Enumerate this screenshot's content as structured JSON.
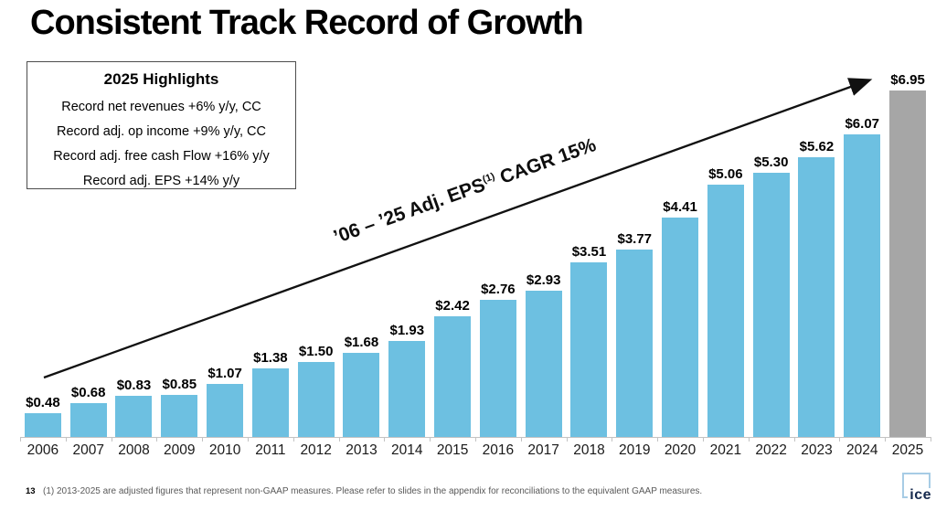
{
  "title": "Consistent Track Record of Growth",
  "highlights": {
    "title": "2025 Highlights",
    "lines": [
      "Record net revenues +6% y/y, CC",
      "Record adj. op income +9% y/y, CC",
      "Record adj. free cash Flow +16% y/y",
      "Record adj. EPS +14% y/y"
    ]
  },
  "cagr_annotation": {
    "before": "’06 – ’25 Adj. EPS",
    "sup": "(1)",
    "after": " CAGR 15%"
  },
  "chart_data": {
    "type": "bar",
    "title": "Consistent Track Record of Growth",
    "categories": [
      "2006",
      "2007",
      "2008",
      "2009",
      "2010",
      "2011",
      "2012",
      "2013",
      "2014",
      "2015",
      "2016",
      "2017",
      "2018",
      "2019",
      "2020",
      "2021",
      "2022",
      "2023",
      "2024",
      "2025"
    ],
    "values": [
      0.48,
      0.68,
      0.83,
      0.85,
      1.07,
      1.38,
      1.5,
      1.68,
      1.93,
      2.42,
      2.76,
      2.93,
      3.51,
      3.77,
      4.41,
      5.06,
      5.3,
      5.62,
      6.07,
      6.95
    ],
    "value_labels": [
      "$0.48",
      "$0.68",
      "$0.83",
      "$0.85",
      "$1.07",
      "$1.38",
      "$1.50",
      "$1.68",
      "$1.93",
      "$2.42",
      "$2.76",
      "$2.93",
      "$3.51",
      "$3.77",
      "$4.41",
      "$5.06",
      "$5.30",
      "$5.62",
      "$6.07",
      "$6.95"
    ],
    "annotation": "’06 – ’25 Adj. EPS(1) CAGR 15%",
    "bar_color": "#6dc0e1",
    "last_bar_color": "#a6a6a6",
    "xlabel": "",
    "ylabel": "",
    "ylim": [
      0,
      7
    ],
    "grid": false,
    "legend": false
  },
  "colors": {
    "bar": "#6dc0e1",
    "bar_2025": "#a6a6a6",
    "arrow": "#111111",
    "axis": "#c3c3c3",
    "footnote_gray": "#595959",
    "logo_blue": "#a7cce5",
    "logo_navy": "#15294d"
  },
  "footer": {
    "page_number": "13",
    "footnote": "(1) 2013-2025 are adjusted figures that represent non-GAAP measures. Please refer to slides in the appendix for reconciliations to the equivalent GAAP measures."
  },
  "logo": {
    "text": "ice"
  }
}
